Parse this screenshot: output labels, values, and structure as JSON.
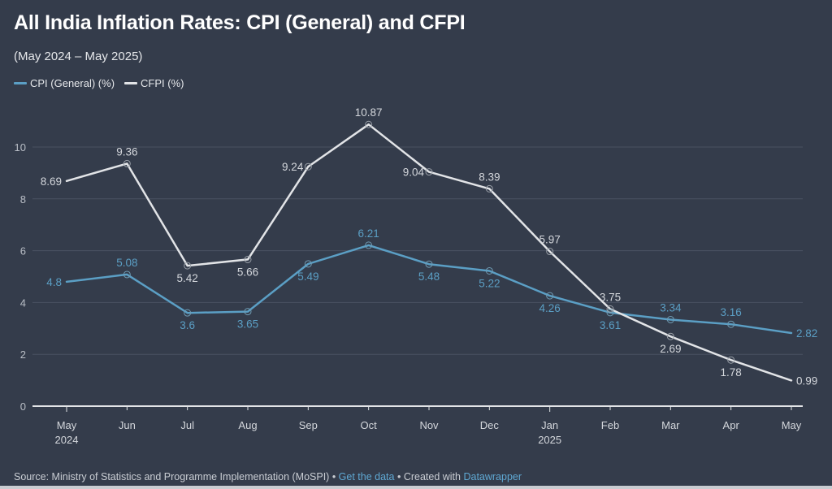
{
  "header": {
    "title": "All India Inflation Rates: CPI (General) and CFPI",
    "subtitle": "(May 2024 – May 2025)"
  },
  "legend": [
    {
      "label": "CPI (General) (%)",
      "color": "#5b9fc5"
    },
    {
      "label": "CFPI (%)",
      "color": "#e2e4e7"
    }
  ],
  "footer": {
    "source_text": "Source: Ministry of Statistics and Programme Implementation (MoSPI)",
    "separator": " • ",
    "get_data_link": "Get the data",
    "created_with_text": "Created with ",
    "datawrapper_link": "Datawrapper"
  },
  "chart_data": {
    "type": "line",
    "title": "All India Inflation Rates: CPI (General) and CFPI",
    "subtitle": "(May 2024 – May 2025)",
    "categories": [
      "May",
      "Jun",
      "Jul",
      "Aug",
      "Sep",
      "Oct",
      "Nov",
      "Dec",
      "Jan",
      "Feb",
      "Mar",
      "Apr",
      "May"
    ],
    "category_sublabels": [
      "2024",
      "",
      "",
      "",
      "",
      "",
      "",
      "",
      "2025",
      "",
      "",
      "",
      ""
    ],
    "xlabel": "",
    "ylabel": "",
    "ylim": [
      0,
      11
    ],
    "yticks": [
      0,
      2,
      4,
      6,
      8,
      10
    ],
    "grid": true,
    "legend_position": "top-left",
    "series": [
      {
        "name": "CPI (General) (%)",
        "color": "#5b9fc5",
        "values": [
          4.8,
          5.08,
          3.6,
          3.65,
          5.49,
          6.21,
          5.48,
          5.22,
          4.26,
          3.61,
          3.34,
          3.16,
          2.82
        ],
        "label_pos": [
          "left",
          "above",
          "below",
          "below",
          "below",
          "above",
          "below",
          "below",
          "below",
          "below",
          "above",
          "above",
          "right"
        ]
      },
      {
        "name": "CFPI (%)",
        "color": "#e2e4e7",
        "values": [
          8.69,
          9.36,
          5.42,
          5.66,
          9.24,
          10.87,
          9.04,
          8.39,
          5.97,
          3.75,
          2.69,
          1.78,
          0.99
        ],
        "label_pos": [
          "left",
          "above",
          "below",
          "below",
          "left",
          "above",
          "left",
          "above",
          "above",
          "above",
          "below",
          "below",
          "right"
        ]
      }
    ]
  }
}
